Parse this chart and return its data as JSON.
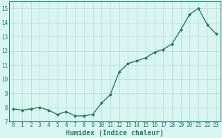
{
  "x": [
    0,
    1,
    2,
    3,
    4,
    5,
    6,
    7,
    8,
    9,
    10,
    11,
    12,
    13,
    14,
    15,
    16,
    17,
    18,
    19,
    20,
    21,
    22,
    23
  ],
  "y": [
    7.9,
    7.8,
    7.9,
    8.0,
    7.8,
    7.5,
    7.7,
    7.4,
    7.4,
    7.5,
    8.3,
    8.9,
    10.5,
    11.1,
    11.3,
    11.5,
    11.9,
    12.1,
    12.5,
    13.5,
    14.6,
    15.0,
    13.85,
    13.2
  ],
  "line_color": "#1a7a6e",
  "marker": "D",
  "marker_size": 2.0,
  "line_width": 1.0,
  "bg_color": "#d8f5f0",
  "grid_color": "#b8d8d0",
  "xlabel": "Humidex (Indice chaleur)",
  "xlabel_fontsize": 7,
  "xlim": [
    -0.5,
    23.5
  ],
  "ylim": [
    7,
    15.5
  ],
  "yticks": [
    7,
    8,
    9,
    10,
    11,
    12,
    13,
    14,
    15
  ],
  "xticks": [
    0,
    1,
    2,
    3,
    4,
    5,
    6,
    7,
    8,
    9,
    10,
    11,
    12,
    13,
    14,
    15,
    16,
    17,
    18,
    19,
    20,
    21,
    22,
    23
  ],
  "tick_fontsize": 5.5,
  "tick_color": "#1a7a6e",
  "spine_color": "#1a7a6e"
}
